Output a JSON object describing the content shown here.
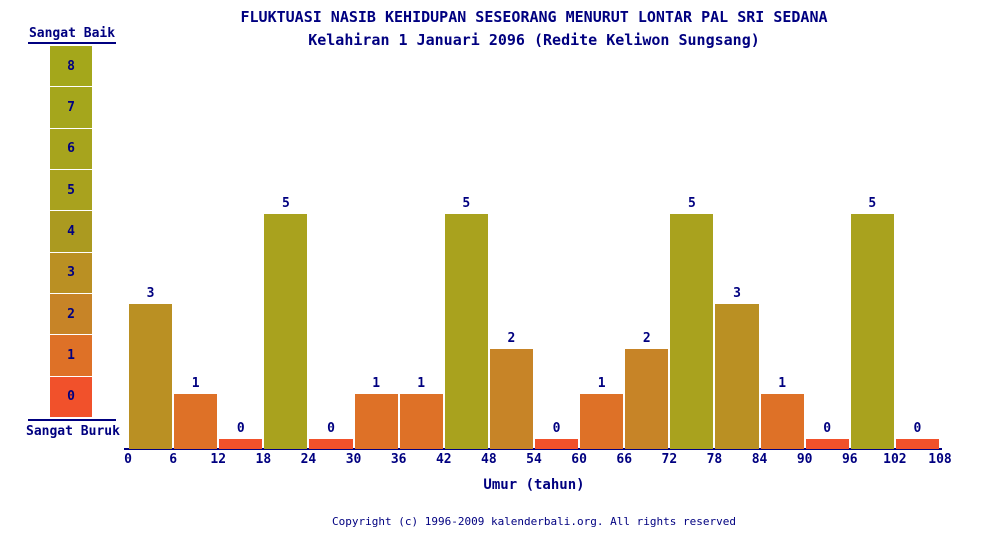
{
  "header": {
    "title": "FLUKTUASI NASIB KEHIDUPAN SESEORANG MENURUT LONTAR PAL SRI SEDANA",
    "subtitle": "Kelahiran 1 Januari 2096 (Redite Keliwon Sungsang)"
  },
  "legend": {
    "top_label": "Sangat Baik",
    "bottom_label": "Sangat Buruk",
    "cells": [
      {
        "value": 8,
        "color": "#a4a71b"
      },
      {
        "value": 7,
        "color": "#a5a61c"
      },
      {
        "value": 6,
        "color": "#a7a41d"
      },
      {
        "value": 5,
        "color": "#a9a21e"
      },
      {
        "value": 4,
        "color": "#ab9a20"
      },
      {
        "value": 3,
        "color": "#ba9023"
      },
      {
        "value": 2,
        "color": "#c78427"
      },
      {
        "value": 1,
        "color": "#de7127"
      },
      {
        "value": 0,
        "color": "#f1512b"
      }
    ]
  },
  "chart_data": {
    "type": "bar",
    "x": [
      0,
      6,
      12,
      18,
      24,
      30,
      36,
      42,
      48,
      54,
      60,
      66,
      72,
      78,
      84,
      90,
      96,
      102
    ],
    "bin_width": 6,
    "values": [
      3,
      1,
      0,
      5,
      0,
      1,
      1,
      5,
      2,
      0,
      1,
      2,
      5,
      3,
      1,
      0,
      5,
      0
    ],
    "x_ticks": [
      0,
      6,
      12,
      18,
      24,
      30,
      36,
      42,
      48,
      54,
      60,
      66,
      72,
      78,
      84,
      90,
      96,
      102,
      108
    ],
    "xlabel": "Umur (tahun)",
    "xlim": [
      0,
      108
    ],
    "value_scale": {
      "min": 0,
      "max": 8,
      "min_label": "Sangat Buruk",
      "max_label": "Sangat Baik"
    },
    "value_colors": {
      "0": "#f1512b",
      "1": "#de7127",
      "2": "#c78427",
      "3": "#ba9023",
      "4": "#ab9a20",
      "5": "#a9a21e",
      "6": "#a7a41d",
      "7": "#a5a61c",
      "8": "#a4a71b"
    },
    "bar_labels_shown": true,
    "grid": false,
    "legend_position": "left"
  },
  "footer": {
    "copyright": "Copyright (c) 1996-2009 kalenderbali.org. All rights reserved"
  },
  "colors": {
    "text": "#000080",
    "axis": "#000080",
    "background": "#ffffff"
  }
}
